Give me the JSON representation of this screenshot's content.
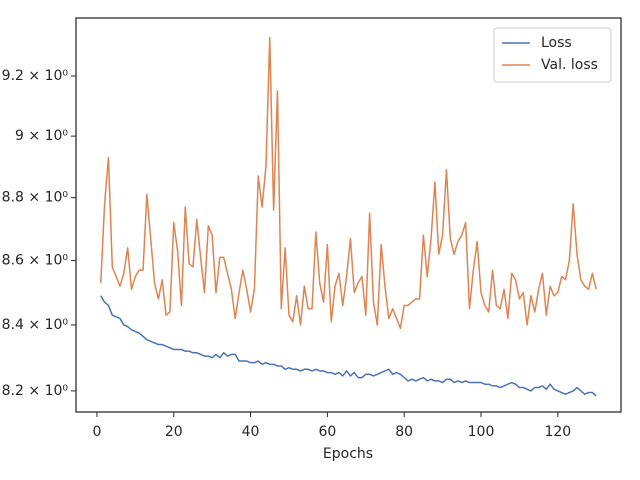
{
  "chart_data": {
    "type": "line",
    "xlabel": "Epochs",
    "yscale": "log",
    "legend": "upper right",
    "x": [
      1,
      2,
      3,
      4,
      5,
      6,
      7,
      8,
      9,
      10,
      11,
      12,
      13,
      14,
      15,
      16,
      17,
      18,
      19,
      20,
      21,
      22,
      23,
      24,
      25,
      26,
      27,
      28,
      29,
      30,
      31,
      32,
      33,
      34,
      35,
      36,
      37,
      38,
      39,
      40,
      41,
      42,
      43,
      44,
      45,
      46,
      47,
      48,
      49,
      50,
      51,
      52,
      53,
      54,
      55,
      56,
      57,
      58,
      59,
      60,
      61,
      62,
      63,
      64,
      65,
      66,
      67,
      68,
      69,
      70,
      71,
      72,
      73,
      74,
      75,
      76,
      77,
      78,
      79,
      80,
      81,
      82,
      83,
      84,
      85,
      86,
      87,
      88,
      89,
      90,
      91,
      92,
      93,
      94,
      95,
      96,
      97,
      98,
      99,
      100,
      101,
      102,
      103,
      104,
      105,
      106,
      107,
      108,
      109,
      110,
      111,
      112,
      113,
      114,
      115,
      116,
      117,
      118,
      119,
      120,
      121,
      122,
      123,
      124,
      125,
      126,
      127,
      128,
      129,
      130
    ],
    "series": [
      {
        "name": "Loss",
        "color": "#4c72b0",
        "values": [
          8.49,
          8.47,
          8.46,
          8.43,
          8.425,
          8.42,
          8.4,
          8.395,
          8.385,
          8.38,
          8.375,
          8.365,
          8.355,
          8.35,
          8.345,
          8.34,
          8.34,
          8.335,
          8.33,
          8.325,
          8.325,
          8.325,
          8.32,
          8.32,
          8.315,
          8.315,
          8.31,
          8.305,
          8.305,
          8.3,
          8.31,
          8.3,
          8.315,
          8.305,
          8.31,
          8.31,
          8.29,
          8.29,
          8.29,
          8.285,
          8.285,
          8.29,
          8.28,
          8.285,
          8.28,
          8.28,
          8.275,
          8.275,
          8.265,
          8.27,
          8.265,
          8.265,
          8.26,
          8.265,
          8.265,
          8.26,
          8.265,
          8.26,
          8.26,
          8.255,
          8.255,
          8.25,
          8.255,
          8.245,
          8.26,
          8.245,
          8.255,
          8.24,
          8.24,
          8.25,
          8.25,
          8.245,
          8.25,
          8.255,
          8.26,
          8.265,
          8.25,
          8.255,
          8.25,
          8.24,
          8.23,
          8.235,
          8.23,
          8.235,
          8.24,
          8.23,
          8.235,
          8.23,
          8.23,
          8.225,
          8.235,
          8.235,
          8.225,
          8.23,
          8.225,
          8.23,
          8.225,
          8.225,
          8.225,
          8.225,
          8.22,
          8.22,
          8.215,
          8.215,
          8.21,
          8.215,
          8.22,
          8.225,
          8.22,
          8.21,
          8.21,
          8.205,
          8.2,
          8.21,
          8.21,
          8.215,
          8.205,
          8.22,
          8.205,
          8.2,
          8.195,
          8.19,
          8.195,
          8.2,
          8.21,
          8.2,
          8.19,
          8.195,
          8.195,
          8.185
        ]
      },
      {
        "name": "Val. loss",
        "color": "#dd8452",
        "values": [
          8.53,
          8.78,
          8.93,
          8.58,
          8.55,
          8.52,
          8.56,
          8.64,
          8.51,
          8.55,
          8.57,
          8.57,
          8.81,
          8.67,
          8.53,
          8.48,
          8.54,
          8.43,
          8.44,
          8.72,
          8.63,
          8.46,
          8.77,
          8.59,
          8.58,
          8.73,
          8.61,
          8.5,
          8.71,
          8.68,
          8.5,
          8.61,
          8.61,
          8.56,
          8.51,
          8.42,
          8.5,
          8.57,
          8.51,
          8.44,
          8.51,
          8.87,
          8.77,
          8.9,
          9.33,
          8.76,
          9.15,
          8.45,
          8.64,
          8.43,
          8.41,
          8.49,
          8.4,
          8.52,
          8.45,
          8.45,
          8.69,
          8.53,
          8.47,
          8.65,
          8.41,
          8.52,
          8.56,
          8.46,
          8.55,
          8.67,
          8.5,
          8.53,
          8.55,
          8.43,
          8.75,
          8.47,
          8.4,
          8.65,
          8.52,
          8.42,
          8.45,
          8.42,
          8.39,
          8.46,
          8.46,
          8.47,
          8.48,
          8.48,
          8.68,
          8.55,
          8.67,
          8.85,
          8.62,
          8.68,
          8.89,
          8.67,
          8.62,
          8.66,
          8.68,
          8.72,
          8.45,
          8.57,
          8.66,
          8.5,
          8.46,
          8.44,
          8.57,
          8.46,
          8.45,
          8.51,
          8.42,
          8.56,
          8.54,
          8.48,
          8.5,
          8.4,
          8.49,
          8.44,
          8.51,
          8.56,
          8.43,
          8.52,
          8.49,
          8.5,
          8.55,
          8.54,
          8.6,
          8.78,
          8.62,
          8.54,
          8.52,
          8.51,
          8.56,
          8.51
        ]
      }
    ],
    "xlim": [
      -5.45,
      136.45
    ],
    "xticks": [
      0,
      20,
      40,
      60,
      80,
      100,
      120
    ],
    "ylim": [
      8.137,
      9.397
    ],
    "yticks": [
      {
        "value": 8.2,
        "label": "8.2 × 10⁰"
      },
      {
        "value": 8.4,
        "label": "8.4 × 10⁰"
      },
      {
        "value": 8.6,
        "label": "8.6 × 10⁰"
      },
      {
        "value": 8.8,
        "label": "8.8 × 10⁰"
      },
      {
        "value": 9,
        "label": "9 × 10⁰"
      },
      {
        "value": 9.2,
        "label": "9.2 × 10⁰"
      }
    ]
  }
}
